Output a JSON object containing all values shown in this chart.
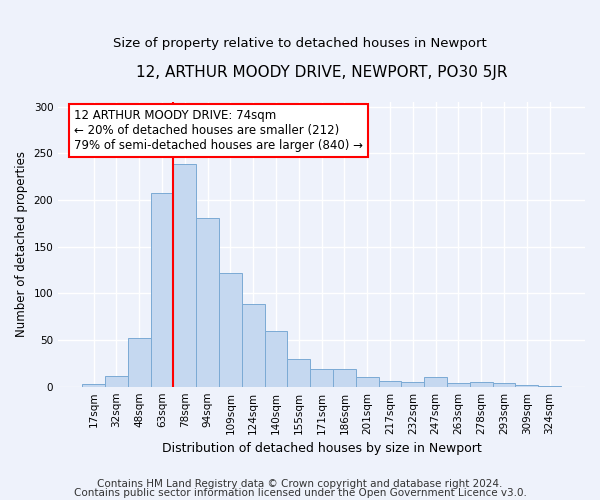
{
  "title": "12, ARTHUR MOODY DRIVE, NEWPORT, PO30 5JR",
  "subtitle": "Size of property relative to detached houses in Newport",
  "xlabel": "Distribution of detached houses by size in Newport",
  "ylabel": "Number of detached properties",
  "footnote1": "Contains HM Land Registry data © Crown copyright and database right 2024.",
  "footnote2": "Contains public sector information licensed under the Open Government Licence v3.0.",
  "bar_labels": [
    "17sqm",
    "32sqm",
    "48sqm",
    "63sqm",
    "78sqm",
    "94sqm",
    "109sqm",
    "124sqm",
    "140sqm",
    "155sqm",
    "171sqm",
    "186sqm",
    "201sqm",
    "217sqm",
    "232sqm",
    "247sqm",
    "263sqm",
    "278sqm",
    "293sqm",
    "309sqm",
    "324sqm"
  ],
  "bar_values": [
    3,
    11,
    52,
    208,
    239,
    181,
    122,
    89,
    60,
    30,
    19,
    19,
    10,
    6,
    5,
    10,
    4,
    5,
    4,
    2,
    1
  ],
  "bar_color": "#c5d8f0",
  "bar_edge_color": "#7baad4",
  "annotation_box_text": "12 ARTHUR MOODY DRIVE: 74sqm\n← 20% of detached houses are smaller (212)\n79% of semi-detached houses are larger (840) →",
  "redline_bar_index": 4,
  "ylim": [
    0,
    305
  ],
  "yticks": [
    0,
    50,
    100,
    150,
    200,
    250,
    300
  ],
  "background_color": "#eef2fb",
  "grid_color": "#ffffff",
  "title_fontsize": 11,
  "subtitle_fontsize": 9.5,
  "ylabel_fontsize": 8.5,
  "xlabel_fontsize": 9,
  "tick_fontsize": 7.5,
  "annotation_fontsize": 8.5,
  "footnote_fontsize": 7.5
}
